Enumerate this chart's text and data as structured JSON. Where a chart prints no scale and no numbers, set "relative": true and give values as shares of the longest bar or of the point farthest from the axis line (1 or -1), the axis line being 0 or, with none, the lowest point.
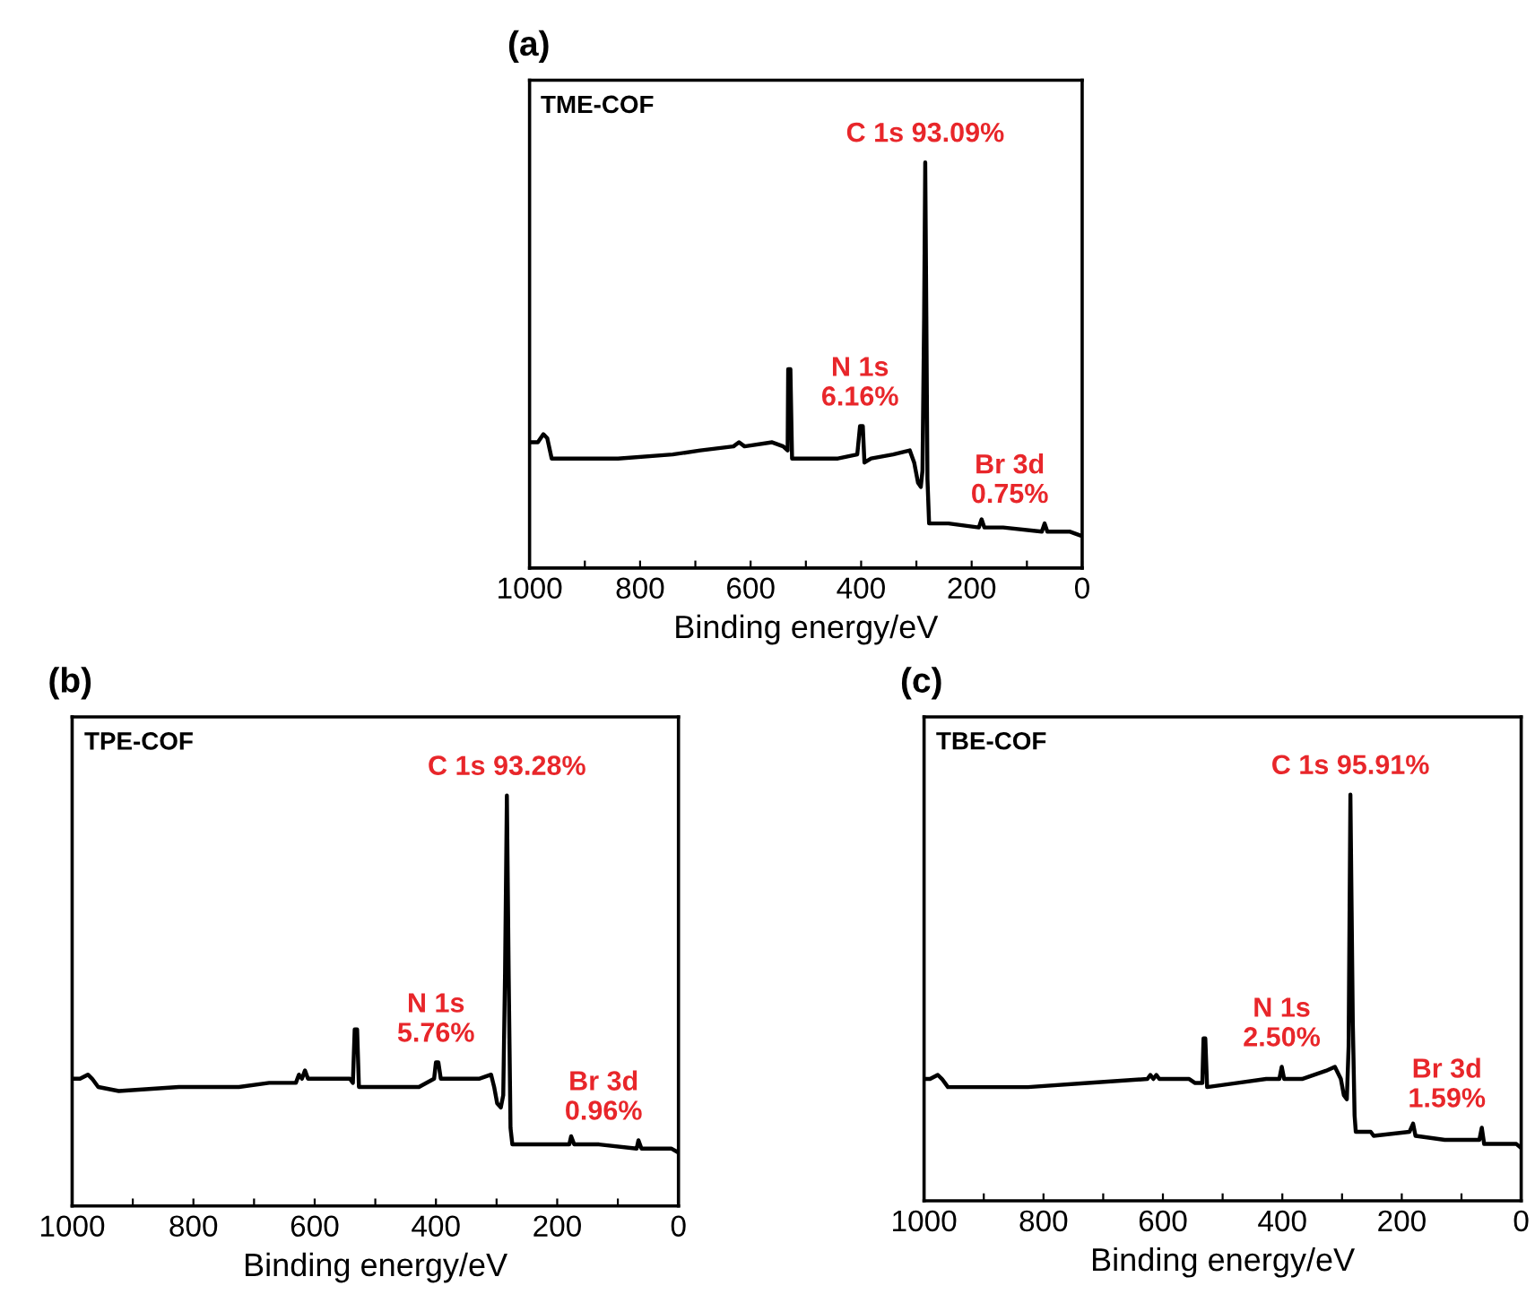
{
  "chart_data": [
    {
      "type": "line",
      "title": "(a)",
      "xlabel": "Binding energy/eV",
      "relative": true,
      "xlim": [
        1000,
        0
      ],
      "xticks": [
        1000,
        {
          "value": 900,
          "label": null
        },
        800,
        {
          "value": 700,
          "label": null
        },
        600,
        {
          "value": 500,
          "label": null
        },
        400,
        {
          "value": 300,
          "label": null
        },
        200,
        {
          "value": 100,
          "label": null
        },
        0
      ],
      "grid": false,
      "legend": false,
      "marker": "none",
      "line_style": "solid",
      "series": [
        {
          "color": "#000000",
          "x": [
            1000,
            985,
            975,
            968,
            960,
            940,
            840,
            741,
            691,
            631,
            621,
            611,
            561,
            541,
            533,
            532,
            528,
            525,
            501,
            442,
            407,
            402,
            397,
            394,
            382,
            342,
            312,
            304,
            297,
            292,
            289,
            286,
            284,
            282,
            280,
            277,
            242,
            187,
            182,
            177,
            143,
            73,
            68,
            63,
            23,
            3,
            0
          ],
          "values": [
            0.31,
            0.31,
            0.33,
            0.32,
            0.27,
            0.27,
            0.27,
            0.28,
            0.29,
            0.3,
            0.31,
            0.3,
            0.31,
            0.3,
            0.29,
            0.49,
            0.49,
            0.27,
            0.27,
            0.27,
            0.28,
            0.35,
            0.35,
            0.26,
            0.27,
            0.28,
            0.29,
            0.26,
            0.21,
            0.2,
            0.24,
            0.62,
            1,
            0.62,
            0.22,
            0.11,
            0.11,
            0.1,
            0.12,
            0.1,
            0.1,
            0.09,
            0.11,
            0.09,
            0.09,
            0.08,
            0.08
          ]
        }
      ],
      "annotations": [
        "TME-COF",
        {
          "text": "C 1s 93.09%",
          "x": 284,
          "y": 1
        },
        {
          "text": "N 1s\n6.16%",
          "x": 402,
          "y": 0.35
        },
        {
          "text": "Br 3d\n0.75%",
          "x": 68,
          "y": 0.11
        }
      ]
    },
    {
      "type": "line",
      "title": "(b)",
      "xlabel": "Binding energy/eV",
      "relative": true,
      "xlim": [
        1000,
        0
      ],
      "xticks": [
        1000,
        {
          "value": 900,
          "label": null
        },
        800,
        {
          "value": 700,
          "label": null
        },
        600,
        {
          "value": 500,
          "label": null
        },
        400,
        {
          "value": 300,
          "label": null
        },
        200,
        {
          "value": 100,
          "label": null
        },
        0
      ],
      "grid": false,
      "legend": false,
      "marker": "none",
      "line_style": "solid",
      "series": [
        {
          "color": "#000000",
          "x": [
            1000,
            987,
            974,
            967,
            957,
            923,
            824,
            725,
            675,
            631,
            626,
            621,
            616,
            611,
            566,
            542,
            537,
            534,
            530,
            527,
            477,
            428,
            403,
            400,
            396,
            392,
            368,
            329,
            309,
            304,
            299,
            293,
            289,
            286,
            283,
            280,
            277,
            274,
            230,
            180,
            177,
            172,
            131,
            69,
            66,
            61,
            12,
            0
          ],
          "values": [
            0.31,
            0.31,
            0.32,
            0.31,
            0.29,
            0.28,
            0.29,
            0.29,
            0.3,
            0.3,
            0.32,
            0.31,
            0.33,
            0.31,
            0.31,
            0.31,
            0.3,
            0.43,
            0.43,
            0.29,
            0.29,
            0.29,
            0.31,
            0.35,
            0.35,
            0.31,
            0.31,
            0.31,
            0.32,
            0.29,
            0.25,
            0.24,
            0.27,
            0.57,
            1,
            0.56,
            0.19,
            0.15,
            0.15,
            0.15,
            0.17,
            0.15,
            0.15,
            0.14,
            0.16,
            0.14,
            0.14,
            0.13
          ]
        }
      ],
      "annotations": [
        "TPE-COF",
        {
          "text": "C 1s 93.28%",
          "x": 283,
          "y": 1
        },
        {
          "text": "N 1s\n5.76%",
          "x": 400,
          "y": 0.35
        },
        {
          "text": "Br 3d\n0.96%",
          "x": 66,
          "y": 0.16
        }
      ]
    },
    {
      "type": "line",
      "title": "(c)",
      "xlabel": "Binding energy/eV",
      "relative": true,
      "xlim": [
        1000,
        0
      ],
      "xticks": [
        1000,
        {
          "value": 900,
          "label": null
        },
        800,
        {
          "value": 700,
          "label": null
        },
        600,
        {
          "value": 500,
          "label": null
        },
        400,
        {
          "value": 300,
          "label": null
        },
        200,
        {
          "value": 100,
          "label": null
        },
        0
      ],
      "grid": false,
      "legend": false,
      "marker": "none",
      "line_style": "solid",
      "series": [
        {
          "color": "#000000",
          "x": [
            1000,
            990,
            977,
            970,
            960,
            925,
            826,
            726,
            626,
            621,
            616,
            611,
            606,
            556,
            546,
            534,
            532,
            529,
            526,
            477,
            427,
            405,
            401,
            397,
            367,
            327,
            312,
            302,
            297,
            292,
            289,
            286,
            282,
            279,
            277,
            257,
            252,
            247,
            187,
            181,
            177,
            128,
            70,
            66,
            62,
            28,
            8,
            0
          ],
          "values": [
            0.3,
            0.3,
            0.31,
            0.3,
            0.28,
            0.28,
            0.28,
            0.29,
            0.3,
            0.31,
            0.3,
            0.31,
            0.3,
            0.3,
            0.29,
            0.29,
            0.4,
            0.4,
            0.28,
            0.29,
            0.3,
            0.3,
            0.33,
            0.3,
            0.3,
            0.32,
            0.33,
            0.3,
            0.26,
            0.25,
            0.38,
            1,
            0.44,
            0.21,
            0.17,
            0.17,
            0.17,
            0.16,
            0.17,
            0.19,
            0.16,
            0.15,
            0.15,
            0.18,
            0.14,
            0.14,
            0.14,
            0.13
          ]
        }
      ],
      "annotations": [
        "TBE-COF",
        {
          "text": "C 1s 95.91%",
          "x": 286,
          "y": 1
        },
        {
          "text": "N 1s\n2.50%",
          "x": 401,
          "y": 0.33
        },
        {
          "text": "Br 3d\n1.59%",
          "x": 66,
          "y": 0.18
        }
      ]
    }
  ]
}
